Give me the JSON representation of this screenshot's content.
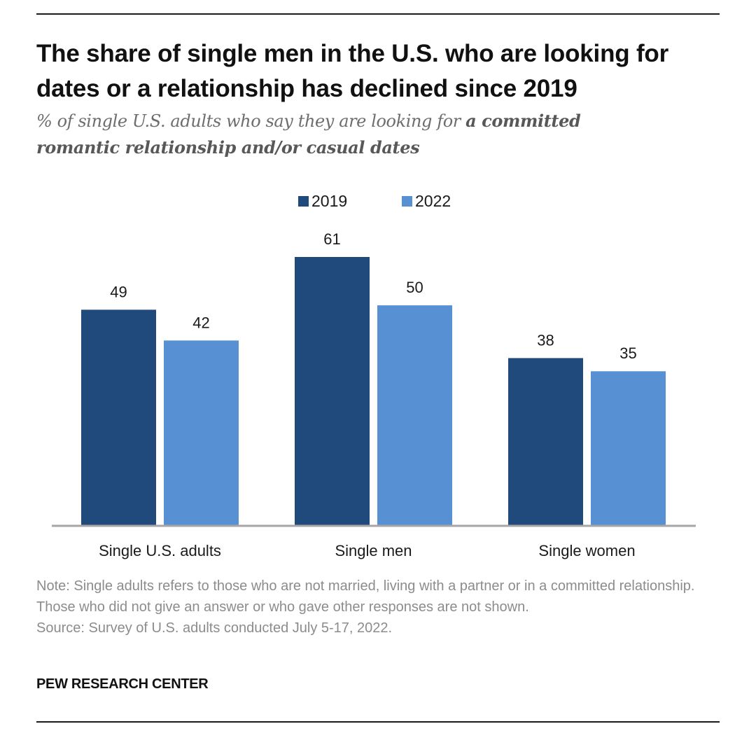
{
  "header": {
    "title": "The share of single men in the U.S. who are looking for dates or a relationship has declined since 2019",
    "subtitle_plain": "% of single U.S. adults who say they are looking for ",
    "subtitle_bold": "a committed romantic relationship and/or casual dates"
  },
  "chart_data": {
    "type": "bar",
    "categories": [
      "Single U.S. adults",
      "Single men",
      "Single women"
    ],
    "series": [
      {
        "name": "2019",
        "values": [
          49,
          61,
          38
        ],
        "color": "#214a7c"
      },
      {
        "name": "2022",
        "values": [
          42,
          50,
          35
        ],
        "color": "#5791d4"
      }
    ],
    "ylim": [
      0,
      61
    ],
    "legend_position": "top-center",
    "grid": false,
    "axis_color": "#a6a6a6"
  },
  "footer": {
    "note": "Note: Single adults refers to those who are not married, living with a partner or in a committed relationship. Those who did not give an answer or who gave other responses are not shown.",
    "source": "Source: Survey of U.S. adults conducted July 5-17, 2022.",
    "brand": "PEW RESEARCH CENTER"
  }
}
